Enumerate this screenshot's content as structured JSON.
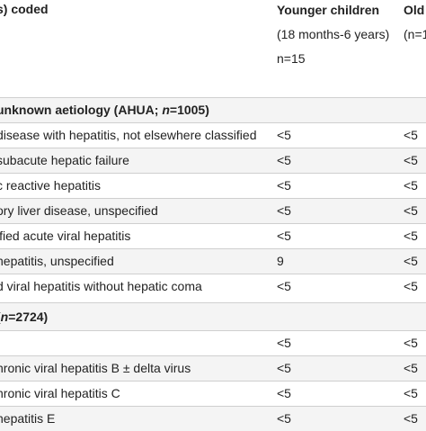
{
  "header": {
    "col1": "s) coded",
    "col2_line1": "Younger children",
    "col2_line2": "(18 months-6 years)",
    "col2_line3": "n=15",
    "col3_line1": "Old",
    "col3_line2": "(n=1"
  },
  "section1": {
    "label_prefix": "unknown aetiology (AHUA; ",
    "label_n": "n",
    "label_suffix": "=1005)"
  },
  "rows1": [
    {
      "label": "disease with hepatitis, not elsewhere classified",
      "v1": "<5",
      "v2": "<5"
    },
    {
      "label": "subacute hepatic failure",
      "v1": "<5",
      "v2": "<5"
    },
    {
      "label": "c reactive hepatitis",
      "v1": "<5",
      "v2": "<5"
    },
    {
      "label": "ory liver disease, unspecified",
      "v1": "<5",
      "v2": "<5"
    },
    {
      "label": "ified acute viral hepatitis",
      "v1": "<5",
      "v2": "<5"
    },
    {
      "label": "hepatitis, unspecified",
      "v1": "9",
      "v2": "<5"
    },
    {
      "label": "d viral hepatitis without hepatic coma",
      "v1": "<5",
      "v2": "<5"
    }
  ],
  "section2": {
    "label_prefix": "(",
    "label_n": "n",
    "label_suffix": "=2724)"
  },
  "rows2": [
    {
      "label": "\\",
      "v1": "<5",
      "v2": "<5"
    },
    {
      "label": "hronic viral hepatitis B ± delta virus",
      "v1": "<5",
      "v2": "<5"
    },
    {
      "label": "hronic viral hepatitis C",
      "v1": "<5",
      "v2": "<5"
    },
    {
      "label": "hepatitis E",
      "v1": "<5",
      "v2": "<5"
    }
  ]
}
